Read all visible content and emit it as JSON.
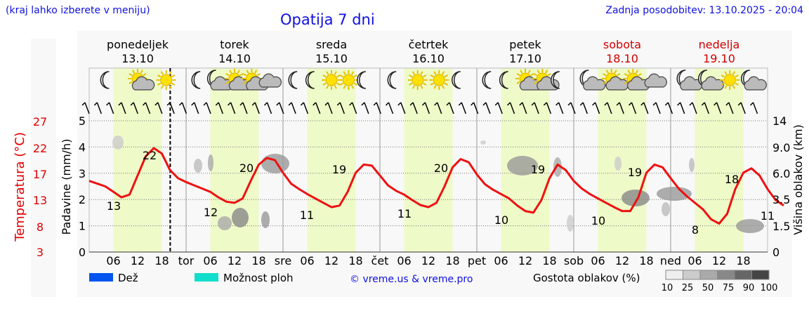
{
  "header": {
    "hint": "(kraj lahko izberete v meniju)",
    "title": "Opatija 7 dni",
    "updated": "Zadnja posodobitev: 13.10.2025 - 20:04"
  },
  "colors": {
    "temperature": "#ee1111",
    "daylight": "#eefac8",
    "precip_rain": "#0055ee",
    "precip_shower": "#11ddcc",
    "title": "#1010e0"
  },
  "chart_data": {
    "type": "line",
    "time_start": "2025-10-13 00:00",
    "time_step_hours": 6,
    "current_time": "2025-10-13 20:04",
    "days": [
      {
        "name": "ponedeljek",
        "date": "13.10",
        "weekend": false,
        "abbr": ""
      },
      {
        "name": "torek",
        "date": "14.10",
        "weekend": false,
        "abbr": "tor"
      },
      {
        "name": "sreda",
        "date": "15.10",
        "weekend": false,
        "abbr": "sre"
      },
      {
        "name": "četrtek",
        "date": "16.10",
        "weekend": false,
        "abbr": "čet"
      },
      {
        "name": "petek",
        "date": "17.10",
        "weekend": false,
        "abbr": "pet"
      },
      {
        "name": "sobota",
        "date": "18.10",
        "weekend": true,
        "abbr": "sob"
      },
      {
        "name": "nedelja",
        "date": "19.10",
        "weekend": true,
        "abbr": "ned"
      }
    ],
    "hour_ticks": [
      "06",
      "12",
      "18"
    ],
    "y_left": {
      "label": "Padavine (mm/h)",
      "ticks": [
        "0",
        "1",
        "2",
        "3",
        "4",
        "5"
      ],
      "range": [
        0,
        5
      ]
    },
    "y_temp": {
      "label": "Temperatura (°C)",
      "ticks": [
        "3",
        "8",
        "13",
        "17",
        "22",
        "27"
      ]
    },
    "y_right": {
      "label": "Višina oblakov (km)",
      "ticks": [
        "0",
        "1.5",
        "3.5",
        "6.0",
        "9.0",
        "14"
      ]
    },
    "series": [
      {
        "name": "Temperatura",
        "temperature_c": [
          16,
          15.5,
          15,
          14,
          13,
          13.5,
          17,
          20.5,
          22,
          21,
          18,
          16.5,
          15.8,
          15.2,
          14.6,
          14,
          13,
          12.2,
          12,
          12.8,
          16,
          19,
          20.2,
          19.8,
          17.5,
          15.5,
          14.5,
          13.6,
          12.8,
          12,
          11.2,
          11.5,
          14,
          17.5,
          19,
          18.8,
          17,
          15.2,
          14.2,
          13.5,
          12.5,
          11.6,
          11.2,
          12,
          15,
          18.5,
          20,
          19.4,
          17.2,
          15.4,
          14.4,
          13.6,
          12.8,
          11.5,
          10.5,
          10.2,
          12.5,
          16.5,
          19,
          18,
          16,
          14.6,
          13.6,
          12.8,
          12,
          11.2,
          10.5,
          10.5,
          13,
          17.5,
          19,
          18.5,
          16.5,
          14.6,
          13.2,
          12,
          10.8,
          9,
          8.2,
          10,
          14.5,
          17.5,
          18.3,
          17,
          14.5,
          12.5,
          11.5
        ]
      }
    ],
    "labels": [
      {
        "text": "13",
        "t": 0,
        "temp": 13
      },
      {
        "text": "22",
        "t": 0,
        "temp": 22
      },
      {
        "text": "12",
        "t": 1,
        "temp": 12
      },
      {
        "text": "20",
        "t": 1,
        "temp": 20
      },
      {
        "text": "11",
        "t": 2,
        "temp": 11
      },
      {
        "text": "19",
        "t": 2,
        "temp": 19
      },
      {
        "text": "11",
        "t": 3,
        "temp": 11
      },
      {
        "text": "20",
        "t": 3,
        "temp": 20
      },
      {
        "text": "10",
        "t": 4,
        "temp": 10
      },
      {
        "text": "19",
        "t": 4,
        "temp": 19
      },
      {
        "text": "10",
        "t": 5,
        "temp": 10
      },
      {
        "text": "19",
        "t": 5,
        "temp": 19
      },
      {
        "text": "8",
        "t": 6,
        "temp": 8
      },
      {
        "text": "18",
        "t": 6,
        "temp": 18
      },
      {
        "text": "11",
        "t": 7,
        "temp": 11
      }
    ],
    "weather_icons": [
      [
        "moon",
        "sun-cloud",
        "sun"
      ],
      [
        "moon",
        "moon-cloud",
        "sun-cloud",
        "sun-cloud",
        "cloud"
      ],
      [
        "moon",
        "moon",
        "sun",
        "sun",
        "moon"
      ],
      [
        "moon",
        "sun",
        "sun",
        "moon"
      ],
      [
        "moon",
        "moon",
        "sun-cloud",
        "sun-cloud",
        "moon"
      ],
      [
        "moon-cloud",
        "sun-cloud",
        "sun-cloud",
        "cloud"
      ],
      [
        "moon-cloud",
        "moon-cloud",
        "sun",
        "moon-cloud"
      ]
    ],
    "legend": {
      "rain": "Dež",
      "showers": "Možnost ploh",
      "copyright": "© vreme.us & vreme.pro",
      "cloud_density_label": "Gostota oblakov (%)",
      "cloud_density_ticks": [
        "10",
        "25",
        "50",
        "75",
        "90",
        "100"
      ]
    }
  }
}
